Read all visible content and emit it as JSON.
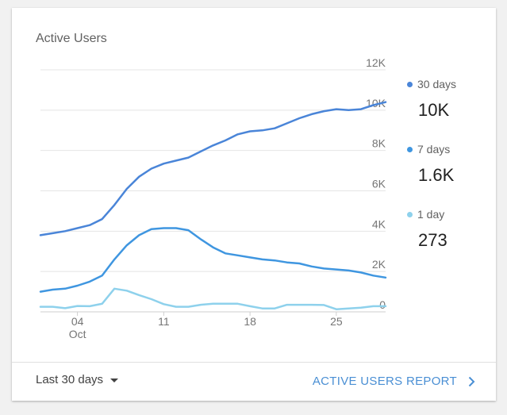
{
  "card": {
    "title": "Active Users"
  },
  "footer": {
    "range_label": "Last 30 days",
    "report_link_label": "ACTIVE USERS REPORT",
    "icons": {
      "dropdown": "caret-down-icon",
      "link": "chevron-right-icon"
    }
  },
  "legend": [
    {
      "label": "30 days",
      "value": "10K",
      "color": "#4a85d8"
    },
    {
      "label": "7 days",
      "value": "1.6K",
      "color": "#3f96e0"
    },
    {
      "label": "1 day",
      "value": "273",
      "color": "#8ed1ec"
    }
  ],
  "chart_data": {
    "type": "line",
    "y_axis": {
      "position": "right",
      "range": [
        0,
        12000
      ],
      "ticks": [
        0,
        2000,
        4000,
        6000,
        8000,
        10000,
        12000
      ],
      "tick_labels": [
        "0",
        "2K",
        "4K",
        "6K",
        "8K",
        "10K",
        "12K"
      ]
    },
    "x_axis": {
      "range": [
        1,
        29
      ],
      "ticks": [
        4,
        11,
        18,
        25
      ],
      "tick_labels": [
        "04",
        "11",
        "18",
        "25"
      ],
      "sublabel": "Oct",
      "sublabel_at": 4
    },
    "grid": true,
    "legend_position": "right",
    "x": [
      1,
      2,
      3,
      4,
      5,
      6,
      7,
      8,
      9,
      10,
      11,
      12,
      13,
      14,
      15,
      16,
      17,
      18,
      19,
      20,
      21,
      22,
      23,
      24,
      25,
      26,
      27,
      28,
      29
    ],
    "series": [
      {
        "name": "30 days",
        "color": "#4a85d8",
        "values": [
          3800,
          3900,
          4000,
          4150,
          4300,
          4600,
          5300,
          6100,
          6700,
          7100,
          7350,
          7500,
          7650,
          7950,
          8250,
          8500,
          8800,
          8950,
          9000,
          9100,
          9350,
          9600,
          9800,
          9950,
          10050,
          10000,
          10050,
          10250,
          10400
        ]
      },
      {
        "name": "7 days",
        "color": "#3f96e0",
        "values": [
          1000,
          1100,
          1150,
          1300,
          1500,
          1800,
          2600,
          3300,
          3800,
          4100,
          4150,
          4150,
          4050,
          3600,
          3200,
          2900,
          2800,
          2700,
          2600,
          2550,
          2450,
          2400,
          2250,
          2150,
          2100,
          2050,
          1950,
          1800,
          1700
        ]
      },
      {
        "name": "1 day",
        "color": "#8ed1ec",
        "values": [
          250,
          250,
          180,
          290,
          280,
          400,
          1150,
          1050,
          830,
          630,
          380,
          250,
          250,
          350,
          400,
          400,
          400,
          280,
          170,
          170,
          350,
          350,
          350,
          340,
          130,
          170,
          210,
          280,
          280
        ]
      }
    ]
  }
}
